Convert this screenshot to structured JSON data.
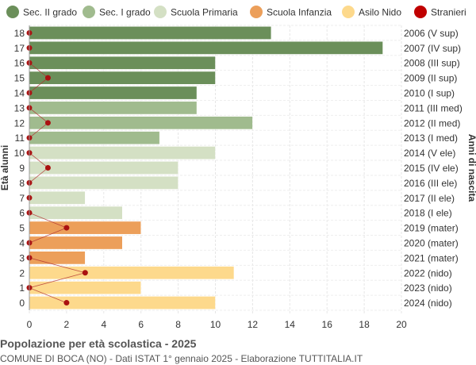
{
  "chart_data": {
    "type": "bar",
    "orientation": "horizontal",
    "ylabel_left": "Età alunni",
    "ylabel_right": "Anni di nascita",
    "xlim": [
      0,
      20
    ],
    "x_ticks": [
      0,
      2,
      4,
      6,
      8,
      10,
      12,
      14,
      16,
      18,
      20
    ],
    "grid": true,
    "legend_position": "top",
    "legend": [
      {
        "key": "sec2",
        "label": "Sec. II grado",
        "color": "#6b8f5a"
      },
      {
        "key": "sec1",
        "label": "Sec. I grado",
        "color": "#a0bb8e"
      },
      {
        "key": "prim",
        "label": "Scuola Primaria",
        "color": "#d4e0c4"
      },
      {
        "key": "inf",
        "label": "Scuola Infanzia",
        "color": "#ec9f5a"
      },
      {
        "key": "nido",
        "label": "Asilo Nido",
        "color": "#fdd98c"
      },
      {
        "key": "stranieri",
        "label": "Stranieri",
        "color": "#c00000"
      }
    ],
    "rows": [
      {
        "age": "18",
        "birth": "2006 (V sup)",
        "value": 13,
        "stranieri": 0,
        "group": "sec2"
      },
      {
        "age": "17",
        "birth": "2007 (IV sup)",
        "value": 19,
        "stranieri": 0,
        "group": "sec2"
      },
      {
        "age": "16",
        "birth": "2008 (III sup)",
        "value": 10,
        "stranieri": 0,
        "group": "sec2"
      },
      {
        "age": "15",
        "birth": "2009 (II sup)",
        "value": 10,
        "stranieri": 1,
        "group": "sec2"
      },
      {
        "age": "14",
        "birth": "2010 (I sup)",
        "value": 9,
        "stranieri": 0,
        "group": "sec2"
      },
      {
        "age": "13",
        "birth": "2011 (III med)",
        "value": 9,
        "stranieri": 0,
        "group": "sec1"
      },
      {
        "age": "12",
        "birth": "2012 (II med)",
        "value": 12,
        "stranieri": 1,
        "group": "sec1"
      },
      {
        "age": "11",
        "birth": "2013 (I med)",
        "value": 7,
        "stranieri": 0,
        "group": "sec1"
      },
      {
        "age": "10",
        "birth": "2014 (V ele)",
        "value": 10,
        "stranieri": 0,
        "group": "prim"
      },
      {
        "age": "9",
        "birth": "2015 (IV ele)",
        "value": 8,
        "stranieri": 1,
        "group": "prim"
      },
      {
        "age": "8",
        "birth": "2016 (III ele)",
        "value": 8,
        "stranieri": 0,
        "group": "prim"
      },
      {
        "age": "7",
        "birth": "2017 (II ele)",
        "value": 3,
        "stranieri": 0,
        "group": "prim"
      },
      {
        "age": "6",
        "birth": "2018 (I ele)",
        "value": 5,
        "stranieri": 0,
        "group": "prim"
      },
      {
        "age": "5",
        "birth": "2019 (mater)",
        "value": 6,
        "stranieri": 2,
        "group": "inf"
      },
      {
        "age": "4",
        "birth": "2020 (mater)",
        "value": 5,
        "stranieri": 0,
        "group": "inf"
      },
      {
        "age": "3",
        "birth": "2021 (mater)",
        "value": 3,
        "stranieri": 0,
        "group": "inf"
      },
      {
        "age": "2",
        "birth": "2022 (nido)",
        "value": 11,
        "stranieri": 3,
        "group": "nido"
      },
      {
        "age": "1",
        "birth": "2023 (nido)",
        "value": 6,
        "stranieri": 0,
        "group": "nido"
      },
      {
        "age": "0",
        "birth": "2024 (nido)",
        "value": 10,
        "stranieri": 2,
        "group": "nido"
      }
    ]
  },
  "footer": {
    "title": "Popolazione per età scolastica - 2025",
    "subtitle": "COMUNE DI BOCA (NO) - Dati ISTAT 1° gennaio 2025 - Elaborazione TUTTITALIA.IT"
  }
}
